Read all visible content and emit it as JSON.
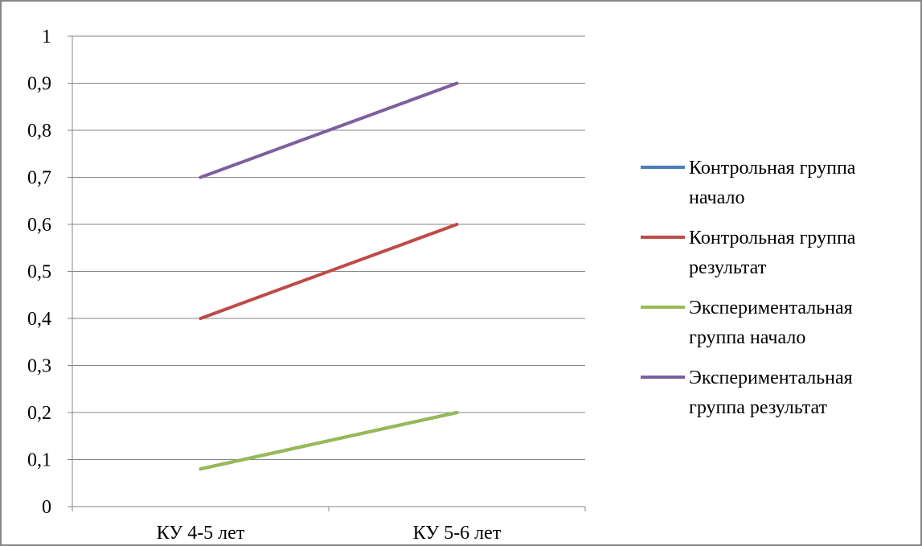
{
  "chart_data": {
    "type": "line",
    "categories": [
      "КУ 4-5 лет",
      "КУ 5-6 лет"
    ],
    "series": [
      {
        "name": "Контрольная группа начало",
        "values": [
          0.08,
          0.2
        ],
        "color": "#4a7ebb"
      },
      {
        "name": "Контрольная группа результат",
        "values": [
          0.4,
          0.6
        ],
        "color": "#be4b48"
      },
      {
        "name": "Экспериментальная группа начало",
        "values": [
          0.08,
          0.2
        ],
        "color": "#98b954"
      },
      {
        "name": "Экспериментальная группа результат",
        "values": [
          0.7,
          0.9
        ],
        "color": "#7d60a0"
      }
    ],
    "y_ticks": [
      "0",
      "0,1",
      "0,2",
      "0,3",
      "0,4",
      "0,5",
      "0,6",
      "0,7",
      "0,8",
      "0,9",
      "1"
    ],
    "ylim": [
      0,
      1
    ],
    "grid": true,
    "legend_position": "right"
  }
}
